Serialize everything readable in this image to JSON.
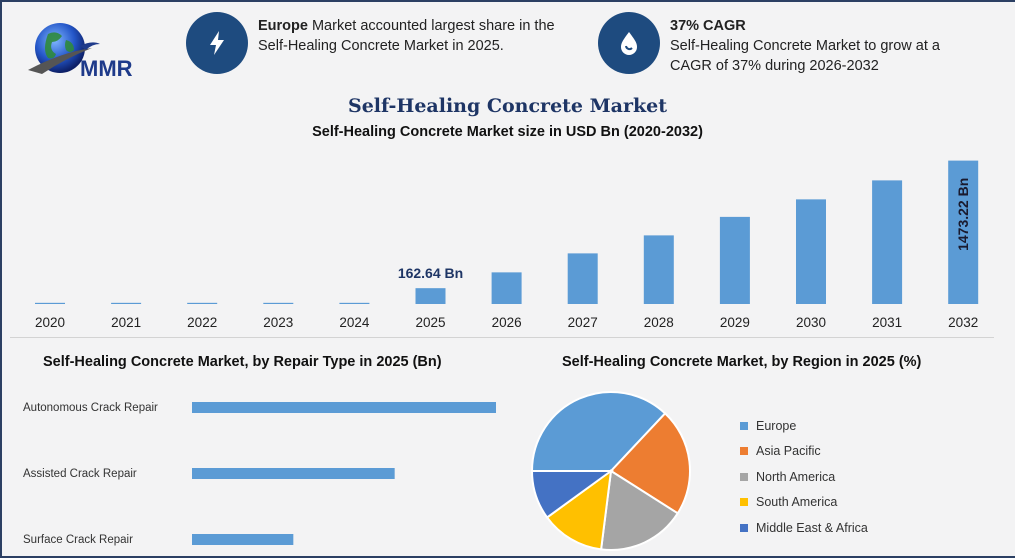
{
  "header": {
    "logo_text": "MMR",
    "info1": {
      "icon": "lightning-icon",
      "bold": "Europe",
      "rest_line1": " Market accounted largest share in the",
      "line2": "Self-Healing Concrete Market in 2025."
    },
    "info2": {
      "icon": "drop-icon",
      "bold": "37% CAGR",
      "line1": "Self-Healing Concrete Market to grow at a",
      "line2": "CAGR of 37% during 2026-2032"
    }
  },
  "titles": {
    "main": "Self-Healing Concrete Market",
    "sub": "Self-Healing Concrete Market size in USD Bn (2020-2032)",
    "repair": "Self-Healing Concrete Market, by Repair Type in 2025 (Bn)",
    "region": "Self-Healing Concrete Market, by Region in 2025 (%)"
  },
  "colors": {
    "bar": "#5b9bd5",
    "accent": "#1e4b7f",
    "title": "#1e3565"
  },
  "chart_data": [
    {
      "type": "bar",
      "title": "Self-Healing Concrete Market size in USD Bn (2020-2032)",
      "categories": [
        "2020",
        "2021",
        "2022",
        "2023",
        "2024",
        "2025",
        "2026",
        "2027",
        "2028",
        "2029",
        "2030",
        "2031",
        "2032"
      ],
      "values": [
        12,
        12,
        12,
        12,
        12,
        162.64,
        325,
        520,
        705,
        895,
        1075,
        1270,
        1473.22
      ],
      "data_labels": [
        {
          "index": 5,
          "text": "162.64 Bn",
          "orientation": "horizontal",
          "position": "above"
        },
        {
          "index": 12,
          "text": "1473.22 Bn",
          "orientation": "vertical",
          "position": "inside"
        }
      ],
      "ylim": [
        0,
        1500
      ],
      "grid": false
    },
    {
      "type": "bar",
      "orientation": "horizontal",
      "title": "Self-Healing Concrete Market, by Repair Type in 2025 (Bn)",
      "categories": [
        "Autonomous Crack Repair",
        "Assisted Crack Repair",
        "Surface Crack Repair"
      ],
      "values": [
        75,
        50,
        25
      ],
      "grid": false
    },
    {
      "type": "pie",
      "title": "Self-Healing Concrete Market, by Region in 2025 (%)",
      "categories": [
        "Europe",
        "Asia Pacific",
        "North America",
        "South America",
        "Middle East & Africa"
      ],
      "values": [
        37,
        22,
        18,
        13,
        10
      ],
      "colors": [
        "#5b9bd5",
        "#ed7d31",
        "#a5a5a5",
        "#ffc000",
        "#4472c4"
      ],
      "legend": "right"
    }
  ]
}
